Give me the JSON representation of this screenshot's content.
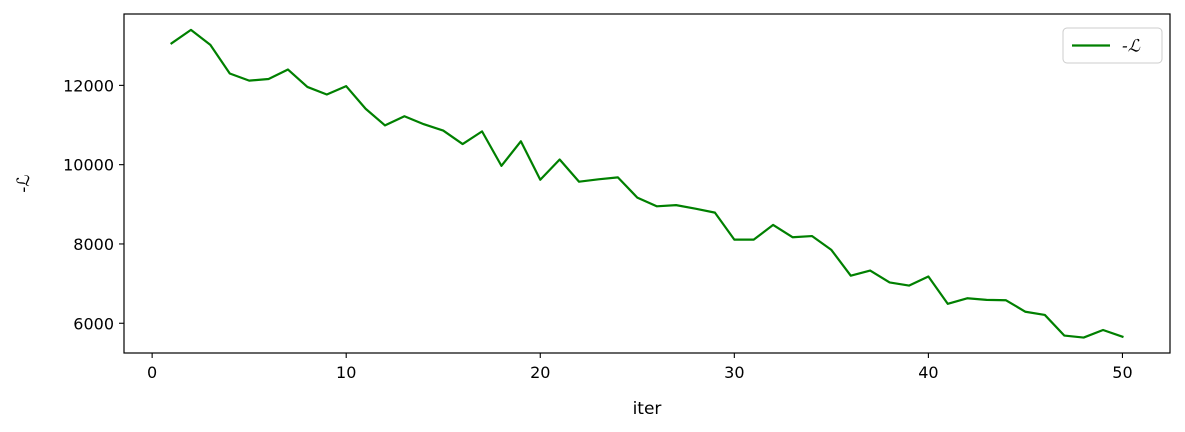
{
  "chart_data": {
    "type": "line",
    "title": "",
    "xlabel": "iter",
    "ylabel": "-ℒ",
    "xlim": [
      -1.45,
      52.45
    ],
    "ylim": [
      5250,
      13800
    ],
    "xticks": [
      0,
      10,
      20,
      30,
      40,
      50
    ],
    "yticks": [
      6000,
      8000,
      10000,
      12000
    ],
    "grid": false,
    "legend_position": "top-right",
    "series": [
      {
        "name": "-ℒ",
        "color": "#008000",
        "x": [
          1,
          2,
          3,
          4,
          5,
          6,
          7,
          8,
          9,
          10,
          11,
          12,
          13,
          14,
          15,
          16,
          17,
          18,
          19,
          20,
          21,
          22,
          23,
          24,
          25,
          26,
          27,
          28,
          29,
          30,
          31,
          32,
          33,
          34,
          35,
          36,
          37,
          38,
          39,
          40,
          41,
          42,
          43,
          44,
          45,
          46,
          47,
          48,
          49,
          50
        ],
        "y": [
          13060,
          13400,
          13020,
          12300,
          12120,
          12160,
          12400,
          11960,
          11770,
          11980,
          11410,
          10990,
          11220,
          11020,
          10860,
          10520,
          10840,
          9970,
          10590,
          9620,
          10130,
          9570,
          9630,
          9680,
          9170,
          8950,
          8980,
          8890,
          8790,
          8110,
          8110,
          8480,
          8170,
          8200,
          7850,
          7200,
          7330,
          7030,
          6950,
          7180,
          6490,
          6630,
          6590,
          6580,
          6290,
          6210,
          5690,
          5640,
          5830,
          5660
        ]
      }
    ]
  }
}
